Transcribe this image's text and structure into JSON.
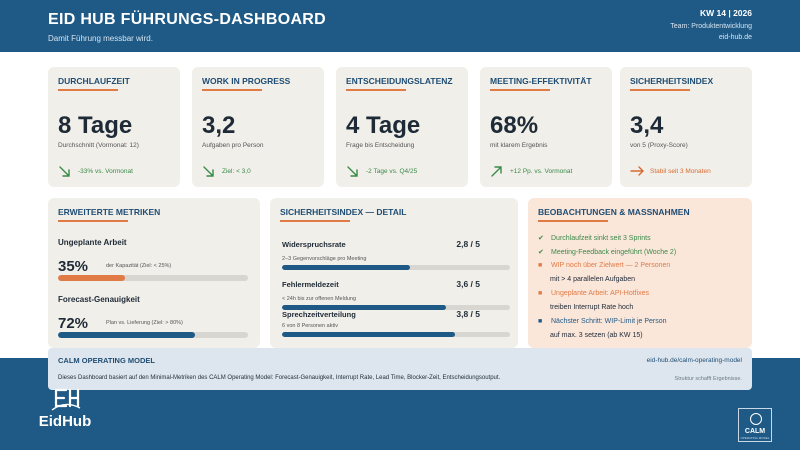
{
  "header": {
    "title": "EID HUB  FÜHRUNGS-DASHBOARD",
    "subtitle": "Damit Führung messbar wird.",
    "week": "KW 14 | 2026",
    "team": "Team: Produktentwicklung",
    "site": "eid-hub.de"
  },
  "kpis": [
    {
      "label": "DURCHLAUFZEIT",
      "value": "8 Tage",
      "desc": "Durchschnitt (Vormonat: 12)",
      "trend": "-33% vs. Vormonat",
      "trend_icon": "arrow-down-right-icon",
      "trend_color": "#3a8a4a"
    },
    {
      "label": "WORK IN PROGRESS",
      "value": "3,2",
      "desc": "Aufgaben pro Person",
      "trend": "Ziel: < 3,0",
      "trend_icon": "arrow-down-right-icon",
      "trend_color": "#3a8a4a"
    },
    {
      "label": "ENTSCHEIDUNGSLATENZ",
      "value": "4 Tage",
      "desc": "Frage bis Entscheidung",
      "trend": "-2 Tage vs. Q4/25",
      "trend_icon": "arrow-down-right-icon",
      "trend_color": "#3a8a4a"
    },
    {
      "label": "MEETING-EFFEKTIVITÄT",
      "value": "68%",
      "desc": "mit klarem Ergebnis",
      "trend": "+12 Pp. vs. Vormonat",
      "trend_icon": "arrow-up-right-icon",
      "trend_color": "#3a8a4a"
    },
    {
      "label": "SICHERHEITSINDEX",
      "value": "3,4",
      "desc": "von 5 (Proxy-Score)",
      "trend": "Stabil seit 3 Monaten",
      "trend_icon": "arrow-right-icon",
      "trend_color": "#d96b30"
    }
  ],
  "metrics": {
    "title": "ERWEITERTE METRIKEN",
    "items": [
      {
        "label": "Ungeplante Arbeit",
        "value": "35%",
        "note": "der Kapazität (Ziel: < 25%)",
        "fill": 0.35,
        "color": "#e07b45"
      },
      {
        "label": "Forecast-Genauigkeit",
        "value": "72%",
        "note": "Plan vs. Lieferung (Ziel: > 80%)",
        "fill": 0.72,
        "color": "#1f5a86"
      }
    ]
  },
  "safety": {
    "title": "SICHERHEITSINDEX — DETAIL",
    "items": [
      {
        "label": "Widerspruchsrate",
        "value": "2,8 / 5",
        "note": "2–3 Gegenvorschläge pro Meeting",
        "fill": 0.56
      },
      {
        "label": "Fehlermeldezeit",
        "value": "3,6 / 5",
        "note": "< 24h bis zur offenen Meldung",
        "fill": 0.72
      },
      {
        "label": "Sprechzeitverteilung",
        "value": "3,8 / 5",
        "note": "6 von 8 Personen aktiv",
        "fill": 0.76
      }
    ]
  },
  "observations": {
    "title": "BEOBACHTUNGEN & MASSNAHMEN",
    "items": [
      {
        "mark": "✔",
        "color": "#3a8a4a",
        "text": "Durchlaufzeit sinkt seit 3 Sprints",
        "sub": ""
      },
      {
        "mark": "✔",
        "color": "#3a8a4a",
        "text": "Meeting-Feedback eingeführt (Woche 2)",
        "sub": ""
      },
      {
        "mark": "■",
        "color": "#e07b45",
        "text": "WIP noch über Zielwert — 2 Personen",
        "sub": "mit > 4 parallelen Aufgaben"
      },
      {
        "mark": "■",
        "color": "#e07b45",
        "text": "Ungeplante Arbeit: API-Hotfixes",
        "sub": "treiben Interrupt Rate hoch"
      },
      {
        "mark": "■",
        "color": "#1f5a86",
        "text": "Nächster Schritt: WIP-Limit je Person",
        "sub": "auf max. 3 setzen (ab KW 15)"
      }
    ]
  },
  "footer": {
    "title": "CALM OPERATING MODEL",
    "link": "eid-hub.de/calm-operating-model",
    "text": "Dieses Dashboard basiert auf den Minimal-Metriken des CALM Operating Model: Forecast-Genauigkeit, Interrupt Rate, Lead Time, Blocker-Zeit, Entscheidungsoutput.",
    "tagline": "Struktur schafft Ergebnisse."
  },
  "logo": {
    "text": "EidHub",
    "icon": "eidhub-logo-icon"
  },
  "calm_badge": {
    "text": "CALM",
    "sub": "OPERATING MODEL",
    "icon": "calm-logo-icon"
  }
}
